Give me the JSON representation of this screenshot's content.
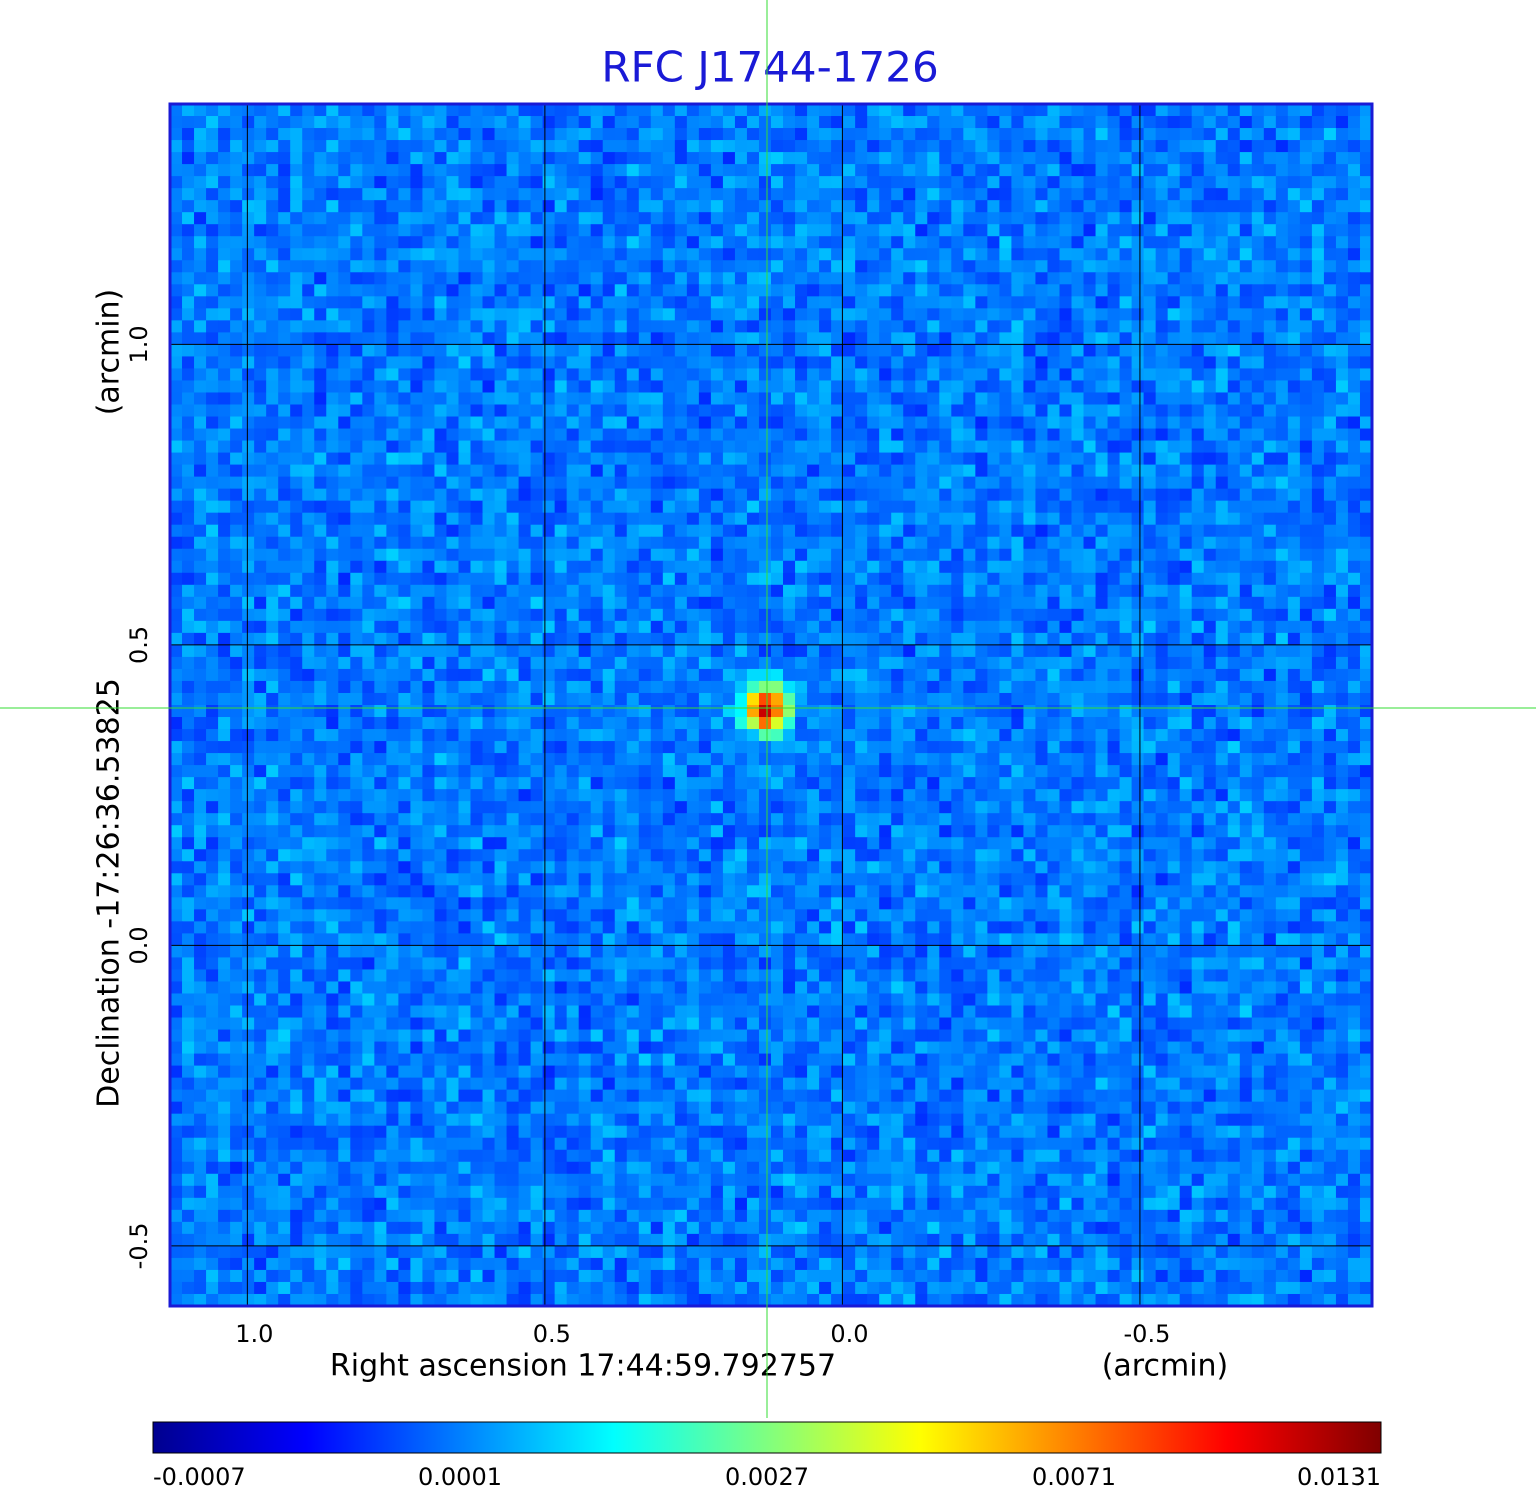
{
  "chart_data": {
    "type": "image",
    "title": "RFC J1744-1726",
    "x_label": "Right ascension  17:44:59.792757",
    "x_unit": "(arcmin)",
    "y_label": "Declination  -17:26:36.53825",
    "y_unit": "(arcmin)",
    "xlim": [
      1.13,
      -0.89
    ],
    "ylim": [
      -0.6,
      1.4
    ],
    "xticks": [
      {
        "value": 1,
        "label": "1.0"
      },
      {
        "value": 0.5,
        "label": "0.5"
      },
      {
        "value": 0,
        "label": "0.0"
      },
      {
        "value": -0.5,
        "label": "-0.5"
      }
    ],
    "yticks": [
      {
        "value": 1,
        "label": "1.0"
      },
      {
        "value": 0.5,
        "label": "0.5"
      },
      {
        "value": 0,
        "label": "0.0"
      },
      {
        "value": -0.5,
        "label": "-0.5"
      }
    ],
    "grid": true,
    "colorbar": {
      "colormap": "jet",
      "ticks": [
        -0.0007,
        0.0001,
        0.0027,
        0.0071,
        0.0131
      ]
    }
  }
}
